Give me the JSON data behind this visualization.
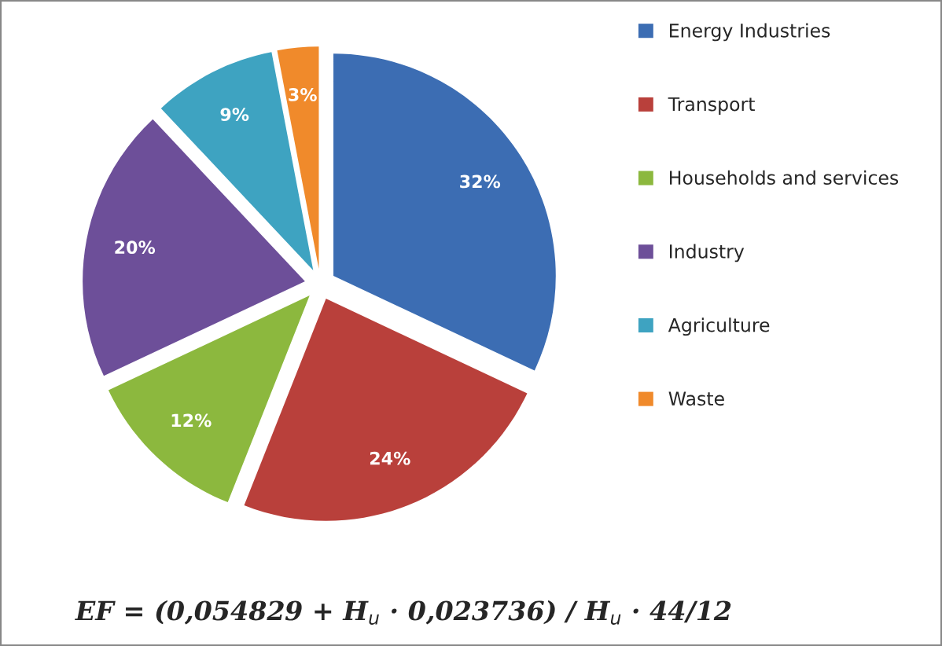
{
  "chart_data": {
    "type": "pie",
    "categories": [
      "Energy Industries",
      "Transport",
      "Households and services",
      "Industry",
      "Agriculture",
      "Waste"
    ],
    "values": [
      32,
      24,
      12,
      20,
      9,
      3
    ],
    "colors": [
      "#3c6db3",
      "#b9403b",
      "#8cb83e",
      "#6d4f99",
      "#3ea3c1",
      "#f08a2b"
    ],
    "value_labels": [
      "32%",
      "24%",
      "12%",
      "20%",
      "9%",
      "3%"
    ],
    "legend": "right",
    "annotations": [
      "EF = (0,054829 + H$_{u}$ · 0,023736) / H$_{u}$ · 44/12"
    ]
  }
}
